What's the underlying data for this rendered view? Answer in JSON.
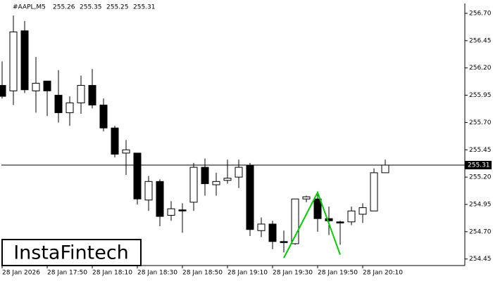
{
  "chart_data": {
    "type": "candlestick",
    "symbol": "#AAPL,M5",
    "quote": [
      255.26,
      255.35,
      255.25,
      255.31
    ],
    "logo": "InstaFintech",
    "open": [
      256.04,
      255.99,
      256.54,
      255.99,
      256.08,
      255.95,
      255.79,
      255.88,
      256.04,
      255.86,
      255.65,
      255.42,
      255.42,
      254.99,
      255.16,
      254.85,
      254.9,
      254.97,
      255.29,
      255.13,
      255.17,
      255.2,
      255.31,
      254.71,
      254.77,
      254.61,
      254.59,
      255.0,
      255.0,
      254.82,
      254.79,
      254.79,
      254.86,
      254.89,
      255.24
    ],
    "high": [
      256.26,
      256.68,
      256.63,
      256.3,
      256.08,
      256.18,
      255.94,
      256.13,
      256.19,
      255.92,
      255.67,
      255.54,
      255.42,
      255.21,
      255.18,
      254.98,
      254.96,
      255.33,
      255.37,
      255.24,
      255.36,
      255.36,
      255.33,
      254.83,
      254.8,
      254.71,
      255.0,
      255.03,
      255.04,
      254.93,
      254.8,
      254.93,
      254.96,
      255.28,
      255.36
    ],
    "low": [
      255.92,
      255.86,
      255.97,
      255.79,
      255.76,
      255.7,
      255.67,
      255.78,
      255.83,
      255.62,
      255.38,
      255.22,
      254.95,
      254.89,
      254.75,
      254.8,
      254.69,
      254.89,
      255.03,
      255.03,
      255.14,
      255.1,
      254.66,
      254.65,
      254.54,
      254.51,
      254.58,
      254.97,
      254.7,
      254.67,
      254.58,
      254.76,
      254.78,
      254.89,
      255.24
    ],
    "close": [
      255.94,
      256.53,
      256.0,
      256.06,
      255.99,
      255.79,
      255.88,
      256.04,
      255.86,
      255.65,
      255.41,
      255.45,
      255.0,
      255.16,
      254.84,
      254.91,
      254.89,
      255.29,
      255.14,
      255.16,
      255.19,
      255.29,
      254.72,
      254.77,
      254.61,
      254.6,
      255.0,
      255.02,
      254.82,
      254.8,
      254.78,
      254.89,
      254.92,
      255.24,
      255.31
    ],
    "color_up": "#ffffff",
    "color_down": "#000000",
    "current_price": 255.31,
    "pattern": {
      "color": "#00cc00",
      "index": [
        25,
        28,
        30
      ],
      "price": [
        254.46,
        255.06,
        254.49
      ]
    },
    "ylim": [
      254.39,
      256.79
    ],
    "yticks": [
      {
        "value": 256.7,
        "label": "256.70"
      },
      256.45,
      {
        "value": 256.2,
        "label": "256.20"
      },
      255.95,
      {
        "value": 255.7,
        "label": "255.70"
      },
      255.45,
      {
        "value": 255.2,
        "label": "255.20"
      },
      254.95,
      {
        "value": 254.7,
        "label": "254.70"
      },
      254.45
    ],
    "xticks": [
      {
        "value": 0,
        "label": "28 Jan 2026"
      },
      {
        "value": 4,
        "label": "28 Jan 17:50"
      },
      {
        "value": 8,
        "label": "28 Jan 18:10"
      },
      {
        "value": 12,
        "label": "28 Jan 18:30"
      },
      {
        "value": 16,
        "label": "28 Jan 18:50"
      },
      {
        "value": 20,
        "label": "28 Jan 19:10"
      },
      {
        "value": 24,
        "label": "28 Jan 19:30"
      },
      {
        "value": 28,
        "label": "28 Jan 19:50"
      },
      {
        "value": 32,
        "label": "28 Jan 20:10"
      }
    ]
  }
}
